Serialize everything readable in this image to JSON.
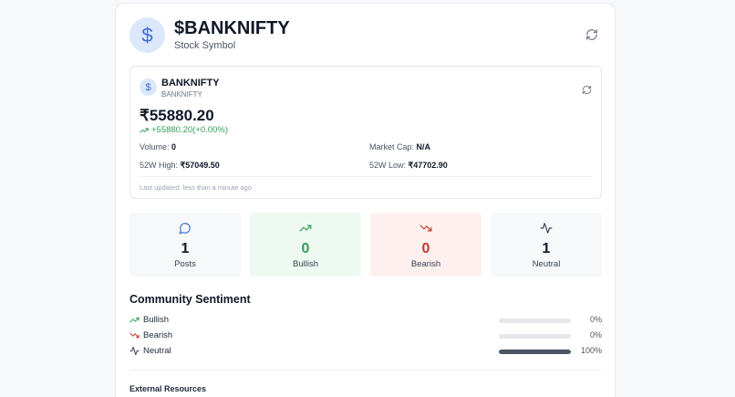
{
  "header": {
    "avatar_symbol": "$",
    "title": "$BANKNIFTY",
    "subtitle": "Stock Symbol",
    "refresh_icon": "refresh-icon"
  },
  "quote": {
    "avatar_symbol": "$",
    "name": "BANKNIFTY",
    "code": "BANKNIFTY",
    "price": "₹55880.20",
    "change": "+55880.20(+0.00%)",
    "change_color": "#2f9e54",
    "volume_label": "Volume:",
    "volume_value": "0",
    "market_cap_label": "Market Cap:",
    "market_cap_value": "N/A",
    "high_label": "52W High:",
    "high_value": "₹57049.50",
    "low_label": "52W Low:",
    "low_value": "₹47702.90",
    "updated": "Last updated: less than a minute ago"
  },
  "stats": [
    {
      "key": "posts",
      "icon": "message-circle-icon",
      "value": "1",
      "label": "Posts",
      "bg": "#f7f8fa",
      "color": "#111827",
      "icon_color": "#3b6fd1"
    },
    {
      "key": "bullish",
      "icon": "trending-up-icon",
      "value": "0",
      "label": "Bullish",
      "bg": "#eefaf1",
      "color": "#2f9e54",
      "icon_color": "#2f9e54"
    },
    {
      "key": "bearish",
      "icon": "trending-down-icon",
      "value": "0",
      "label": "Bearish",
      "bg": "#fdf0ef",
      "color": "#c0392b",
      "icon_color": "#c0392b"
    },
    {
      "key": "neutral",
      "icon": "activity-icon",
      "value": "1",
      "label": "Neutral",
      "bg": "#f7f8fa",
      "color": "#111827",
      "icon_color": "#374151"
    }
  ],
  "sentiment": {
    "title": "Community Sentiment",
    "rows": [
      {
        "label": "Bullish",
        "icon": "trending-up-icon",
        "percent_text": "0%",
        "fraction": 0,
        "icon_color": "#2f9e54"
      },
      {
        "label": "Bearish",
        "icon": "trending-down-icon",
        "percent_text": "0%",
        "fraction": 0,
        "icon_color": "#c0392b"
      },
      {
        "label": "Neutral",
        "icon": "activity-icon",
        "percent_text": "100%",
        "fraction": 1,
        "icon_color": "#374151"
      }
    ]
  },
  "external": {
    "title": "External Resources"
  }
}
